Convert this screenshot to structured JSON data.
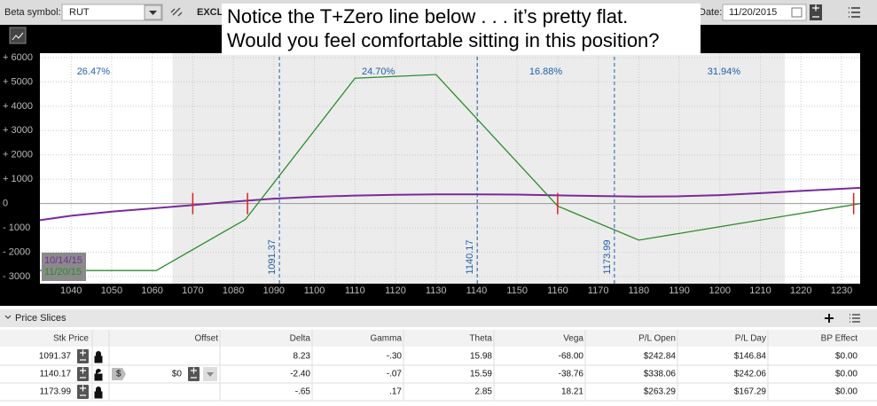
{
  "toolbar": {
    "beta_label": "Beta symbol:",
    "beta_symbol": "RUT",
    "exclude": "EXCLU",
    "date_label": "Date:",
    "date": "11/20/2015"
  },
  "annotation": [
    "Notice the T+Zero line below . . . it’s pretty flat.",
    "Would you feel comfortable sitting in this position?"
  ],
  "chart_data": {
    "type": "line",
    "xlim": [
      1032.3,
      1234.6
    ],
    "ylim": [
      -3290,
      6180
    ],
    "xticks": [
      1040,
      1050,
      1060,
      1070,
      1080,
      1090,
      1100,
      1110,
      1120,
      1130,
      1140,
      1150,
      1160,
      1170,
      1180,
      1190,
      1200,
      1210,
      1220,
      1230
    ],
    "yticks": [
      {
        "value": 6000,
        "label": "+ 6000"
      },
      {
        "value": 5000,
        "label": "+ 5000"
      },
      {
        "value": 4000,
        "label": "+ 4000"
      },
      {
        "value": 3000,
        "label": "+ 3000"
      },
      {
        "value": 2000,
        "label": "+ 2000"
      },
      {
        "value": 1000,
        "label": "+ 1000"
      },
      0,
      {
        "value": -1000,
        "label": "- 1000"
      },
      {
        "value": -2000,
        "label": "- 2000"
      },
      {
        "value": -3000,
        "label": "- 3000"
      }
    ],
    "grid": true,
    "shaded_range": [
      1065,
      1216
    ],
    "price_slices": [
      1091.37,
      1140.17,
      1173.99
    ],
    "probabilities": [
      "26.47%",
      "24.70%",
      "16.88%",
      "31.94%"
    ],
    "markers": [
      1070,
      1083.5,
      1160,
      1233
    ],
    "series": [
      {
        "name": "10/14/15",
        "color": "#7a2a9a",
        "x": [
          1032.3,
          1040,
          1050,
          1060,
          1070,
          1080,
          1090,
          1100,
          1110,
          1120,
          1130,
          1140,
          1150,
          1160,
          1170,
          1180,
          1190,
          1200,
          1210,
          1220,
          1234.6
        ],
        "values": [
          -680,
          -500,
          -330,
          -200,
          -60,
          80,
          200,
          280,
          330,
          360,
          380,
          380,
          370,
          340,
          310,
          290,
          300,
          350,
          430,
          520,
          650
        ]
      },
      {
        "name": "11/20/15",
        "color": "#2e8b2e",
        "x": [
          1032.3,
          1061,
          1083,
          1110,
          1130,
          1160,
          1180,
          1234.6
        ],
        "values": [
          -2750,
          -2750,
          -650,
          5150,
          5300,
          -100,
          -1500,
          0
        ]
      }
    ]
  },
  "price_slices": {
    "title": "Price Slices",
    "columns": [
      "Stk Price",
      "Offset",
      "Delta",
      "Gamma",
      "Theta",
      "Vega",
      "P/L Open",
      "P/L Day",
      "BP Effect"
    ],
    "rows": [
      {
        "stk_price": "1091.37",
        "delta": "8.23",
        "gamma": "-.30",
        "theta": "15.98",
        "vega": "-68.00",
        "pl_open": "$242.84",
        "pl_day": "$146.84",
        "bp_effect": "$0.00"
      },
      {
        "stk_price": "1140.17",
        "offset_unit": "$",
        "offset": "$0",
        "delta": "-2.40",
        "gamma": "-.07",
        "theta": "15.59",
        "vega": "-38.76",
        "pl_open": "$338.06",
        "pl_day": "$242.06",
        "bp_effect": "$0.00"
      },
      {
        "stk_price": "1173.99",
        "delta": "-.65",
        "gamma": ".17",
        "theta": "2.85",
        "vega": "18.21",
        "pl_open": "$263.29",
        "pl_day": "$167.29",
        "bp_effect": "$0.00"
      }
    ]
  }
}
